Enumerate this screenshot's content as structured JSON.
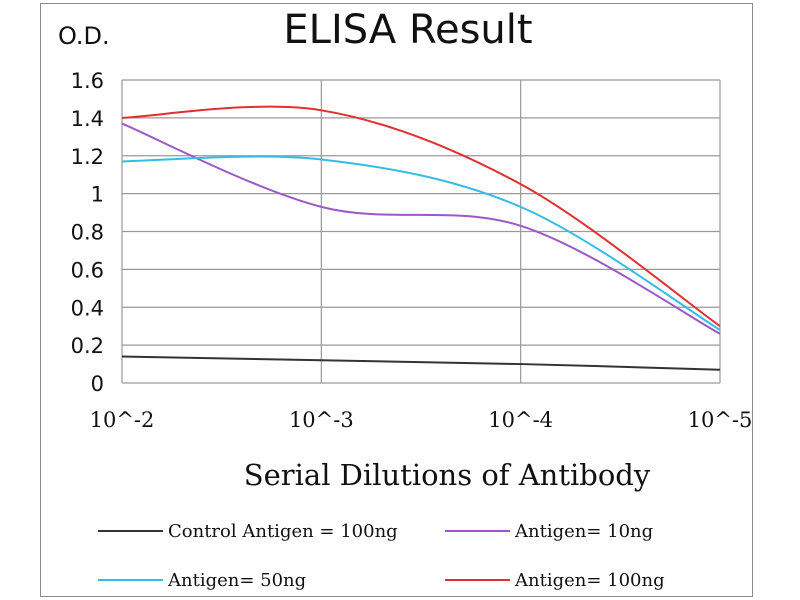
{
  "chart_data": {
    "type": "line",
    "title": "ELISA Result",
    "ylabel": "O.D.",
    "xlabel": "Serial Dilutions  of Antibody",
    "x_scale": "log",
    "categories": [
      "10^-2",
      "10^-3",
      "10^-4",
      "10^-5"
    ],
    "x": [
      0.01,
      0.001,
      0.0001,
      1e-05
    ],
    "ylim": [
      0,
      1.6
    ],
    "yticks": [
      "0",
      "0.2",
      "0.4",
      "0.6",
      "0.8",
      "1",
      "1.2",
      "1.4",
      "1.6"
    ],
    "grid": true,
    "legend_position": "bottom",
    "series": [
      {
        "name": "Control Antigen = 100ng",
        "color": "#333333",
        "values": [
          0.14,
          0.12,
          0.1,
          0.07
        ]
      },
      {
        "name": "Antigen= 10ng",
        "color": "#9b59c7",
        "values": [
          1.37,
          0.93,
          0.83,
          0.26
        ]
      },
      {
        "name": "Antigen= 50ng",
        "color": "#33bde6",
        "values": [
          1.17,
          1.18,
          0.93,
          0.28
        ]
      },
      {
        "name": "Antigen= 100ng",
        "color": "#e03030",
        "values": [
          1.4,
          1.44,
          1.05,
          0.3
        ]
      }
    ]
  }
}
